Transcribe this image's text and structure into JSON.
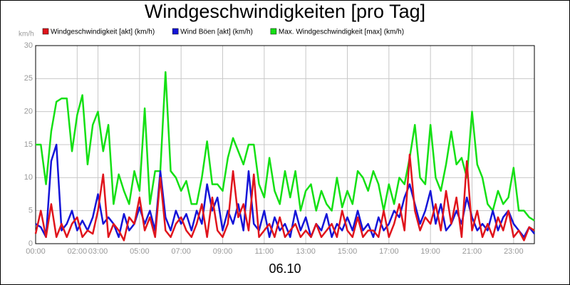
{
  "chart_data": {
    "type": "line",
    "title": "Windgeschwindigkeiten [pro Tag]",
    "y_unit": "km/h",
    "xlabel": "06.10",
    "x": [
      0,
      0.25,
      0.5,
      0.75,
      1,
      1.25,
      1.5,
      1.75,
      2,
      2.25,
      2.5,
      2.75,
      3,
      3.25,
      3.5,
      3.75,
      4,
      4.25,
      4.5,
      4.75,
      5,
      5.25,
      5.5,
      5.75,
      6,
      6.25,
      6.5,
      6.75,
      7,
      7.25,
      7.5,
      7.75,
      8,
      8.25,
      8.5,
      8.75,
      9,
      9.25,
      9.5,
      9.75,
      10,
      10.25,
      10.5,
      10.75,
      11,
      11.25,
      11.5,
      11.75,
      12,
      12.25,
      12.5,
      12.75,
      13,
      13.25,
      13.5,
      13.75,
      14,
      14.25,
      14.5,
      14.75,
      15,
      15.25,
      15.5,
      15.75,
      16,
      16.25,
      16.5,
      16.75,
      17,
      17.25,
      17.5,
      17.75,
      18,
      18.25,
      18.5,
      18.75,
      19,
      19.25,
      19.5,
      19.75,
      20,
      20.25,
      20.5,
      20.75,
      21,
      21.25,
      21.5,
      21.75,
      22,
      22.25,
      22.5,
      22.75,
      23,
      23.25,
      23.5,
      23.75,
      24
    ],
    "series": [
      {
        "name": "Windgeschwindigkeit [akt] (km/h)",
        "color": "#e0141c",
        "values": [
          1.5,
          5,
          1,
          6,
          1,
          3,
          1,
          3,
          4,
          1,
          2,
          1.5,
          5,
          10.5,
          1,
          3,
          2,
          0.5,
          4,
          3,
          7,
          2,
          4,
          1,
          10,
          2,
          1,
          3,
          4,
          2,
          1,
          3,
          6,
          1,
          7,
          2,
          1,
          3,
          11,
          4,
          6,
          2,
          10.5,
          1,
          2,
          3,
          1,
          4,
          1,
          2,
          3,
          1,
          2,
          1,
          3,
          1,
          2,
          3,
          1,
          5,
          2,
          1,
          4,
          1,
          2,
          2,
          1,
          5,
          1,
          3,
          6,
          2,
          13.5,
          5,
          2,
          4,
          3,
          6,
          2,
          8,
          3,
          7,
          1,
          12.5,
          2,
          5,
          1,
          3,
          1,
          4,
          2,
          5,
          1,
          2,
          0.5,
          2.5,
          2
        ]
      },
      {
        "name": "Wind Böen [akt] (km/h)",
        "color": "#1414d8",
        "values": [
          3,
          2.5,
          1,
          12.5,
          15,
          2,
          3,
          5,
          2,
          3.5,
          2,
          4,
          7.5,
          3,
          4,
          3,
          1,
          4.5,
          2,
          3,
          5.5,
          3,
          5,
          2,
          11,
          4,
          2,
          5,
          3,
          4.5,
          2,
          5,
          3,
          9,
          5,
          7,
          2,
          5,
          3,
          6,
          2,
          11,
          3,
          2,
          5,
          1,
          4,
          2,
          3,
          1,
          5,
          2,
          4,
          1,
          3,
          2,
          4.5,
          1,
          3,
          2,
          4,
          2,
          5,
          2,
          3,
          1,
          4,
          2,
          3,
          5,
          4,
          7,
          9,
          6,
          3,
          5,
          8,
          3,
          6,
          2,
          3,
          5,
          3,
          7,
          4,
          2,
          3,
          2,
          5,
          2,
          4,
          5,
          3,
          2,
          1,
          2.5,
          1.5
        ]
      },
      {
        "name": "Max. Windgeschwindigkeit [max] (km/h)",
        "color": "#14e014",
        "values": [
          15,
          15,
          9,
          17,
          21.5,
          22,
          22,
          14,
          19.5,
          22.5,
          12,
          18,
          20,
          14,
          18,
          6,
          10.5,
          8,
          6,
          11,
          8,
          20.5,
          6,
          11,
          11,
          26,
          11,
          10,
          8,
          9.5,
          6,
          6,
          10,
          15.5,
          9,
          9,
          8,
          13,
          16,
          14,
          12,
          15,
          15,
          9,
          7,
          13,
          8,
          6,
          11,
          7,
          11,
          5,
          8,
          9,
          5,
          8,
          6,
          5,
          10,
          5.5,
          8,
          6,
          11,
          10,
          8,
          11,
          9,
          5,
          9,
          6,
          10,
          9,
          13,
          18,
          10,
          9,
          18,
          10,
          8,
          12,
          17,
          12,
          13,
          10,
          20,
          12,
          10,
          6,
          5,
          8,
          6,
          7,
          11.5,
          5,
          5,
          4,
          3.5
        ]
      }
    ],
    "xlim": [
      0,
      24
    ],
    "xticks": [
      {
        "value": 0,
        "label": "00:00"
      },
      {
        "value": 2,
        "label": "02:00"
      },
      {
        "value": 3,
        "label": "03:00"
      },
      {
        "value": 5,
        "label": "05:00"
      },
      {
        "value": 7,
        "label": "07:00"
      },
      {
        "value": 9,
        "label": "09:00"
      },
      {
        "value": 11,
        "label": "11:00"
      },
      {
        "value": 13,
        "label": "13:00"
      },
      {
        "value": 15,
        "label": "15:00"
      },
      {
        "value": 17,
        "label": "17:00"
      },
      {
        "value": 19,
        "label": "19:00"
      },
      {
        "value": 21,
        "label": "21:00"
      },
      {
        "value": 23,
        "label": "23:00"
      }
    ],
    "ylim": [
      0,
      30
    ],
    "yticks": [
      0,
      5,
      10,
      15,
      20,
      25,
      30
    ],
    "grid": true
  }
}
